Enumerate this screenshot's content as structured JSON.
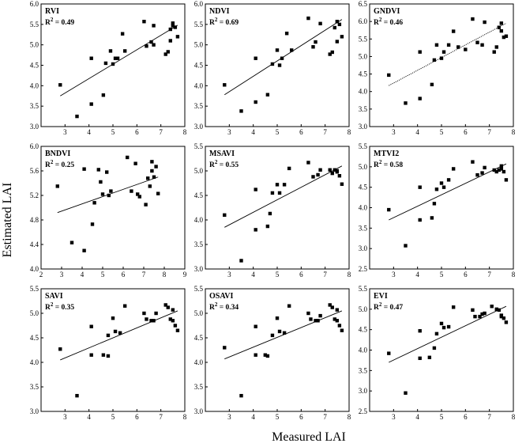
{
  "figure": {
    "xlabel": "Measured LAI",
    "ylabel": "Estimated LAI"
  },
  "chart_data": [
    {
      "type": "scatter",
      "title": "RVI",
      "r2_prefix": "R",
      "r2_sup": "2",
      "r2_value": " = 0.49",
      "xlim": [
        2,
        8
      ],
      "ylim": [
        3.0,
        6.0
      ],
      "xticks": [
        "3",
        "4",
        "5",
        "6",
        "7",
        "8"
      ],
      "yticks": [
        "3.0",
        "3.5",
        "4.0",
        "4.5",
        "5.0",
        "5.5",
        "6.0"
      ],
      "x": [
        2.8,
        3.5,
        4.1,
        4.1,
        4.6,
        4.7,
        4.9,
        5.0,
        5.1,
        5.2,
        5.4,
        5.5,
        6.3,
        6.4,
        6.6,
        6.7,
        6.7,
        7.2,
        7.3,
        7.4,
        7.4,
        7.5,
        7.5,
        7.6,
        7.7
      ],
      "y": [
        4.02,
        3.25,
        3.55,
        4.67,
        3.77,
        4.55,
        4.85,
        4.53,
        4.67,
        4.67,
        5.27,
        4.85,
        5.57,
        4.97,
        5.07,
        5.47,
        5.0,
        4.77,
        4.83,
        5.1,
        5.38,
        5.53,
        5.47,
        5.43,
        5.2
      ],
      "fit": [
        3.75,
        5.48
      ],
      "fit_style": "solid"
    },
    {
      "type": "scatter",
      "title": "NDVI",
      "r2_prefix": "R",
      "r2_sup": "2",
      "r2_value": " = 0.69",
      "xlim": [
        2,
        8
      ],
      "ylim": [
        3.0,
        6.0
      ],
      "xticks": [
        "3",
        "4",
        "5",
        "6",
        "7",
        "8"
      ],
      "yticks": [
        "3.0",
        "3.5",
        "4.0",
        "4.5",
        "5.0",
        "5.5",
        "6.0"
      ],
      "x": [
        2.8,
        3.5,
        4.1,
        4.1,
        4.6,
        4.8,
        5.0,
        5.1,
        5.2,
        5.4,
        5.6,
        6.3,
        6.5,
        6.6,
        6.8,
        7.2,
        7.3,
        7.4,
        7.5,
        7.5,
        7.6,
        7.7
      ],
      "y": [
        4.02,
        3.38,
        3.6,
        4.67,
        3.78,
        4.53,
        4.87,
        4.5,
        4.67,
        5.28,
        4.87,
        5.65,
        4.95,
        5.07,
        5.52,
        4.77,
        4.82,
        5.42,
        5.08,
        5.57,
        5.5,
        5.2
      ],
      "fit": [
        3.78,
        5.62
      ],
      "fit_style": "solid"
    },
    {
      "type": "scatter",
      "title": "GNDVI",
      "r2_prefix": "R",
      "r2_sup": "2",
      "r2_value": " = 0.46",
      "xlim": [
        2,
        8
      ],
      "ylim": [
        3.0,
        6.5
      ],
      "xticks": [
        "3",
        "4",
        "5",
        "6",
        "7",
        "8"
      ],
      "yticks": [
        "3.0",
        "3.5",
        "4.0",
        "4.5",
        "5.0",
        "5.5",
        "6.0",
        "6.5"
      ],
      "x": [
        2.8,
        3.5,
        4.1,
        4.1,
        4.6,
        4.7,
        4.8,
        5.0,
        5.1,
        5.3,
        5.5,
        5.7,
        6.0,
        6.3,
        6.5,
        6.7,
        6.8,
        7.2,
        7.3,
        7.4,
        7.5,
        7.5,
        7.6,
        7.7
      ],
      "y": [
        4.47,
        3.67,
        3.8,
        5.13,
        4.2,
        4.9,
        5.33,
        4.95,
        5.13,
        5.33,
        5.72,
        5.27,
        5.2,
        6.07,
        5.4,
        5.33,
        5.98,
        5.13,
        5.27,
        5.83,
        5.73,
        5.95,
        5.55,
        5.58
      ],
      "fit": [
        4.17,
        5.95
      ],
      "fit_style": "dotted"
    },
    {
      "type": "scatter",
      "title": "BNDVI",
      "r2_prefix": "R",
      "r2_sup": "2",
      "r2_value": " = 0.25",
      "xlim": [
        2,
        9
      ],
      "ylim": [
        4.0,
        6.0
      ],
      "xticks": [
        "2",
        "3",
        "4",
        "5",
        "6",
        "7",
        "8",
        "9"
      ],
      "yticks": [
        "4.0",
        "4.4",
        "4.8",
        "5.2",
        "5.6",
        "6.0"
      ],
      "x": [
        2.8,
        3.5,
        4.1,
        4.1,
        4.5,
        4.6,
        4.8,
        4.9,
        5.0,
        5.2,
        5.3,
        5.4,
        6.2,
        6.4,
        6.6,
        6.7,
        6.8,
        7.1,
        7.2,
        7.3,
        7.4,
        7.4,
        7.5,
        7.6,
        7.7
      ],
      "y": [
        5.35,
        4.43,
        4.3,
        5.63,
        4.73,
        5.08,
        5.62,
        5.42,
        5.22,
        5.58,
        5.2,
        5.27,
        5.82,
        5.27,
        5.72,
        5.22,
        5.18,
        5.05,
        5.48,
        5.35,
        5.75,
        5.6,
        5.5,
        5.67,
        5.23
      ],
      "fit": [
        4.92,
        5.5
      ],
      "fit_style": "solid"
    },
    {
      "type": "scatter",
      "title": "MSAVI",
      "r2_prefix": "R",
      "r2_sup": "2",
      "r2_value": " = 0.55",
      "xlim": [
        2,
        8
      ],
      "ylim": [
        3.0,
        5.5
      ],
      "xticks": [
        "3",
        "4",
        "5",
        "6",
        "7",
        "8"
      ],
      "yticks": [
        "3.0",
        "3.5",
        "4.0",
        "4.5",
        "5.0",
        "5.5"
      ],
      "x": [
        2.8,
        3.5,
        4.1,
        4.1,
        4.6,
        4.7,
        4.8,
        5.0,
        5.1,
        5.3,
        5.5,
        6.3,
        6.5,
        6.7,
        6.8,
        7.2,
        7.3,
        7.4,
        7.5,
        7.5,
        7.6,
        7.7
      ],
      "y": [
        4.1,
        3.17,
        4.62,
        3.8,
        3.87,
        4.13,
        4.55,
        4.72,
        4.55,
        4.72,
        5.05,
        5.17,
        4.88,
        4.92,
        5.02,
        5.02,
        4.95,
        5.02,
        5.0,
        4.98,
        4.9,
        4.73
      ],
      "fit": [
        3.85,
        5.1
      ],
      "fit_style": "solid"
    },
    {
      "type": "scatter",
      "title": "MTVI2",
      "r2_prefix": "R",
      "r2_sup": "2",
      "r2_value": " = 0.58",
      "xlim": [
        2,
        8
      ],
      "ylim": [
        2.5,
        5.5
      ],
      "xticks": [
        "3",
        "4",
        "5",
        "6",
        "7",
        "8"
      ],
      "yticks": [
        "2.5",
        "3.0",
        "3.5",
        "4.0",
        "4.5",
        "5.0",
        "5.5"
      ],
      "x": [
        2.8,
        3.5,
        4.1,
        4.1,
        4.6,
        4.7,
        4.8,
        5.0,
        5.1,
        5.3,
        5.5,
        6.3,
        6.5,
        6.7,
        6.8,
        7.2,
        7.3,
        7.4,
        7.5,
        7.5,
        7.6,
        7.7
      ],
      "y": [
        3.95,
        3.07,
        3.7,
        4.5,
        3.75,
        4.1,
        4.45,
        4.6,
        4.5,
        4.68,
        4.95,
        5.12,
        4.8,
        4.85,
        4.98,
        4.92,
        4.88,
        4.92,
        4.95,
        5.02,
        4.88,
        4.68
      ],
      "fit": [
        3.7,
        5.07
      ],
      "fit_style": "solid"
    },
    {
      "type": "scatter",
      "title": "SAVI",
      "r2_prefix": "R",
      "r2_sup": "2",
      "r2_value": " = 0.35",
      "xlim": [
        2,
        8
      ],
      "ylim": [
        3.0,
        5.5
      ],
      "xticks": [
        "3",
        "4",
        "5",
        "6",
        "7",
        "8"
      ],
      "yticks": [
        "3.0",
        "3.5",
        "4.0",
        "4.5",
        "5.0",
        "5.5"
      ],
      "x": [
        2.8,
        3.5,
        4.1,
        4.1,
        4.6,
        4.8,
        4.8,
        5.0,
        5.1,
        5.3,
        5.5,
        6.3,
        6.4,
        6.6,
        6.7,
        6.8,
        7.2,
        7.3,
        7.4,
        7.5,
        7.5,
        7.6,
        7.7
      ],
      "y": [
        4.27,
        3.32,
        4.73,
        4.15,
        4.15,
        4.13,
        4.55,
        4.9,
        4.63,
        4.6,
        5.15,
        5.0,
        4.88,
        4.85,
        4.85,
        5.0,
        5.17,
        5.12,
        4.88,
        4.85,
        5.07,
        4.75,
        4.65
      ],
      "fit": [
        4.05,
        5.05
      ],
      "fit_style": "solid"
    },
    {
      "type": "scatter",
      "title": "OSAVI",
      "r2_prefix": "R",
      "r2_sup": "2",
      "r2_value": " = 0.34",
      "xlim": [
        2,
        8
      ],
      "ylim": [
        3.0,
        5.5
      ],
      "xticks": [
        "3",
        "4",
        "5",
        "6",
        "7",
        "8"
      ],
      "yticks": [
        "3.0",
        "3.5",
        "4.0",
        "4.5",
        "5.0",
        "5.5"
      ],
      "x": [
        2.8,
        3.5,
        4.1,
        4.1,
        4.5,
        4.6,
        4.8,
        5.0,
        5.1,
        5.3,
        5.5,
        6.3,
        6.4,
        6.6,
        6.7,
        6.8,
        7.2,
        7.3,
        7.4,
        7.5,
        7.5,
        7.6,
        7.7
      ],
      "y": [
        4.3,
        3.32,
        4.73,
        4.15,
        4.15,
        4.13,
        4.55,
        4.9,
        4.63,
        4.6,
        5.15,
        5.0,
        4.88,
        4.85,
        4.85,
        4.95,
        5.17,
        5.12,
        4.88,
        4.85,
        5.07,
        4.75,
        4.65
      ],
      "fit": [
        4.07,
        5.05
      ],
      "fit_style": "solid"
    },
    {
      "type": "scatter",
      "title": "EVI",
      "r2_prefix": "R",
      "r2_sup": "2",
      "r2_value": " = 0.47",
      "xlim": [
        2,
        8
      ],
      "ylim": [
        2.5,
        5.5
      ],
      "xticks": [
        "3",
        "4",
        "5",
        "6",
        "7",
        "8"
      ],
      "yticks": [
        "2.5",
        "3.0",
        "3.5",
        "4.0",
        "4.5",
        "5.0",
        "5.5"
      ],
      "x": [
        2.8,
        3.5,
        4.1,
        4.1,
        4.5,
        4.7,
        4.8,
        5.0,
        5.1,
        5.3,
        5.5,
        6.3,
        6.4,
        6.6,
        6.7,
        6.8,
        7.1,
        7.3,
        7.4,
        7.5,
        7.5,
        7.6,
        7.7
      ],
      "y": [
        3.92,
        2.95,
        3.8,
        4.47,
        3.82,
        4.05,
        4.4,
        4.65,
        4.55,
        4.57,
        5.05,
        4.98,
        4.82,
        4.82,
        4.88,
        4.9,
        5.07,
        5.0,
        4.98,
        4.85,
        4.82,
        4.78,
        4.68
      ],
      "fit": [
        3.7,
        5.07
      ],
      "fit_style": "solid"
    }
  ]
}
